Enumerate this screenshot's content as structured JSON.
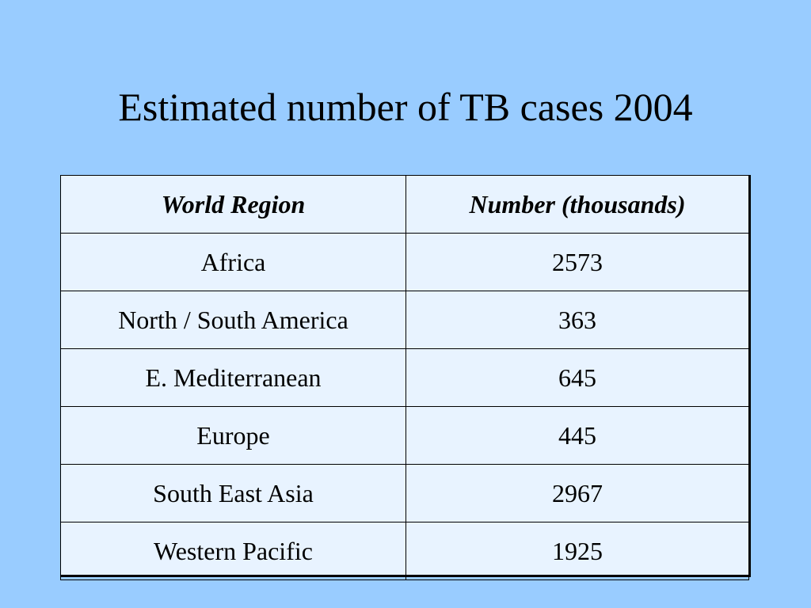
{
  "slide": {
    "title": "Estimated number of TB cases 2004",
    "background_color": "#99ccff",
    "table_fill_color": "#e8f3ff"
  },
  "table": {
    "headers": [
      "World Region",
      "Number (thousands)"
    ],
    "rows": [
      [
        "Africa",
        "2573"
      ],
      [
        "North / South America",
        "363"
      ],
      [
        "E. Mediterranean",
        "645"
      ],
      [
        "Europe",
        "445"
      ],
      [
        "South East Asia",
        "2967"
      ],
      [
        "Western Pacific",
        "1925"
      ]
    ]
  }
}
